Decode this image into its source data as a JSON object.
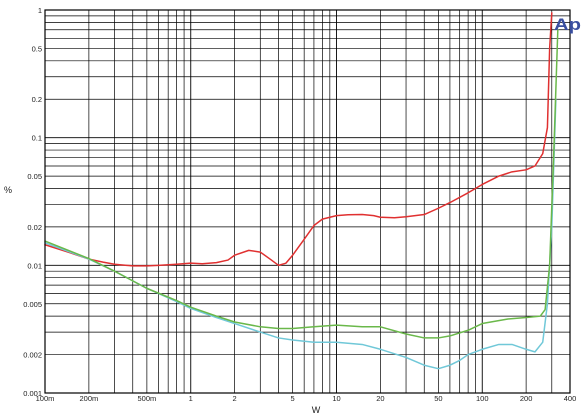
{
  "chart_data": {
    "type": "line",
    "xlabel": "W",
    "ylabel": "%",
    "x_scale": "log",
    "y_scale": "log",
    "xlim": [
      0.1,
      400
    ],
    "ylim": [
      0.001,
      1
    ],
    "grid": true,
    "logo_text": "Ap",
    "x_ticks": [
      {
        "value": 0.1,
        "label": "100m"
      },
      {
        "value": 0.2,
        "label": "200m"
      },
      {
        "value": 0.5,
        "label": "500m"
      },
      {
        "value": 1,
        "label": "1"
      },
      {
        "value": 2,
        "label": "2"
      },
      {
        "value": 5,
        "label": "5"
      },
      {
        "value": 10,
        "label": "10"
      },
      {
        "value": 20,
        "label": "20"
      },
      {
        "value": 50,
        "label": "50"
      },
      {
        "value": 100,
        "label": "100"
      },
      {
        "value": 200,
        "label": "200"
      },
      {
        "value": 400,
        "label": "400"
      }
    ],
    "y_ticks": [
      {
        "value": 0.001,
        "label": "0.001"
      },
      {
        "value": 0.002,
        "label": "0.002"
      },
      {
        "value": 0.005,
        "label": "0.005"
      },
      {
        "value": 0.01,
        "label": "0.01"
      },
      {
        "value": 0.02,
        "label": "0.02"
      },
      {
        "value": 0.05,
        "label": "0.05"
      },
      {
        "value": 0.1,
        "label": "0.1"
      },
      {
        "value": 0.2,
        "label": "0.2"
      },
      {
        "value": 0.5,
        "label": "0.5"
      },
      {
        "value": 1,
        "label": "1"
      }
    ],
    "series": [
      {
        "color": "#e03030",
        "points": [
          [
            0.1,
            0.0145
          ],
          [
            0.15,
            0.0125
          ],
          [
            0.2,
            0.0112
          ],
          [
            0.25,
            0.0106
          ],
          [
            0.3,
            0.0102
          ],
          [
            0.4,
            0.0099
          ],
          [
            0.5,
            0.0099
          ],
          [
            0.6,
            0.01
          ],
          [
            0.8,
            0.0102
          ],
          [
            1,
            0.0104
          ],
          [
            1.2,
            0.0103
          ],
          [
            1.5,
            0.0105
          ],
          [
            1.8,
            0.011
          ],
          [
            2,
            0.012
          ],
          [
            2.5,
            0.0131
          ],
          [
            3,
            0.0127
          ],
          [
            3.5,
            0.0112
          ],
          [
            4,
            0.01
          ],
          [
            4.5,
            0.0104
          ],
          [
            5,
            0.012
          ],
          [
            6,
            0.016
          ],
          [
            7,
            0.0205
          ],
          [
            8,
            0.023
          ],
          [
            10,
            0.0245
          ],
          [
            12,
            0.0249
          ],
          [
            15,
            0.025
          ],
          [
            18,
            0.0245
          ],
          [
            20,
            0.0238
          ],
          [
            25,
            0.0236
          ],
          [
            30,
            0.024
          ],
          [
            40,
            0.025
          ],
          [
            50,
            0.028
          ],
          [
            60,
            0.031
          ],
          [
            80,
            0.037
          ],
          [
            100,
            0.043
          ],
          [
            130,
            0.05
          ],
          [
            160,
            0.054
          ],
          [
            200,
            0.056
          ],
          [
            230,
            0.06
          ],
          [
            260,
            0.075
          ],
          [
            280,
            0.12
          ],
          [
            290,
            0.5
          ],
          [
            300,
            0.95
          ]
        ]
      },
      {
        "color": "#70c8d8",
        "points": [
          [
            0.1,
            0.015
          ],
          [
            0.2,
            0.0112
          ],
          [
            0.3,
            0.009
          ],
          [
            0.5,
            0.0066
          ],
          [
            0.8,
            0.0052
          ],
          [
            1,
            0.0046
          ],
          [
            1.5,
            0.0039
          ],
          [
            2,
            0.0035
          ],
          [
            3,
            0.003
          ],
          [
            4,
            0.0027
          ],
          [
            5,
            0.0026
          ],
          [
            7,
            0.0025
          ],
          [
            10,
            0.0025
          ],
          [
            15,
            0.0024
          ],
          [
            20,
            0.0022
          ],
          [
            30,
            0.0019
          ],
          [
            40,
            0.00165
          ],
          [
            50,
            0.00155
          ],
          [
            60,
            0.00165
          ],
          [
            70,
            0.0018
          ],
          [
            80,
            0.002
          ],
          [
            100,
            0.0022
          ],
          [
            130,
            0.0024
          ],
          [
            160,
            0.0024
          ],
          [
            200,
            0.0022
          ],
          [
            230,
            0.0021
          ],
          [
            260,
            0.0025
          ],
          [
            280,
            0.005
          ],
          [
            300,
            0.02
          ],
          [
            320,
            0.2
          ]
        ]
      },
      {
        "color": "#6ab84a",
        "points": [
          [
            0.1,
            0.0155
          ],
          [
            0.2,
            0.0113
          ],
          [
            0.3,
            0.009
          ],
          [
            0.5,
            0.0066
          ],
          [
            0.8,
            0.0053
          ],
          [
            1,
            0.0047
          ],
          [
            1.5,
            0.004
          ],
          [
            2,
            0.0036
          ],
          [
            3,
            0.0033
          ],
          [
            4,
            0.0032
          ],
          [
            5,
            0.0032
          ],
          [
            7,
            0.0033
          ],
          [
            10,
            0.0034
          ],
          [
            15,
            0.0033
          ],
          [
            20,
            0.0033
          ],
          [
            30,
            0.0029
          ],
          [
            40,
            0.0027
          ],
          [
            50,
            0.0027
          ],
          [
            60,
            0.0028
          ],
          [
            80,
            0.0031
          ],
          [
            100,
            0.0035
          ],
          [
            150,
            0.0038
          ],
          [
            200,
            0.0039
          ],
          [
            250,
            0.004
          ],
          [
            270,
            0.0045
          ],
          [
            290,
            0.01
          ],
          [
            310,
            0.08
          ],
          [
            330,
            0.7
          ]
        ]
      }
    ]
  }
}
